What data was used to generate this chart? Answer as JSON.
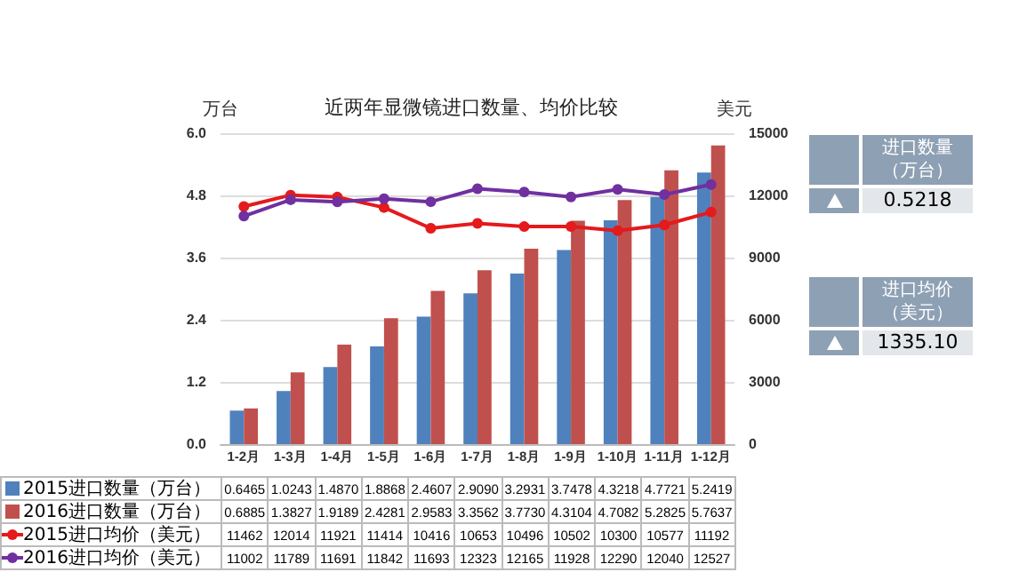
{
  "chart_data": [
    {
      "type": "bar",
      "title": "近两年显微镜进口数量、均价比较",
      "ylabel": "万台",
      "y2label": "美元",
      "categories": [
        "1-2月",
        "1-3月",
        "1-4月",
        "1-5月",
        "1-6月",
        "1-7月",
        "1-8月",
        "1-9月",
        "1-10月",
        "1-11月",
        "1-12月"
      ],
      "series": [
        {
          "name": "2015进口数量（万台）",
          "type": "bar",
          "color": "#4f81bd",
          "values": [
            0.6465,
            1.0243,
            1.487,
            1.8868,
            2.4607,
            2.909,
            3.2931,
            3.7478,
            4.3218,
            4.7721,
            5.2419
          ],
          "value_labels": [
            "0.6465",
            "1.0243",
            "1.4870",
            "1.8868",
            "2.4607",
            "2.9090",
            "3.2931",
            "3.7478",
            "4.3218",
            "4.7721",
            "5.2419"
          ]
        },
        {
          "name": "2016进口数量（万台）",
          "type": "bar",
          "color": "#c0504d",
          "values": [
            0.6885,
            1.3827,
            1.9189,
            2.4281,
            2.9583,
            3.3562,
            3.773,
            4.3104,
            4.7082,
            5.2825,
            5.7637
          ],
          "value_labels": [
            "0.6885",
            "1.3827",
            "1.9189",
            "2.4281",
            "2.9583",
            "3.3562",
            "3.7730",
            "4.3104",
            "4.7082",
            "5.2825",
            "5.7637"
          ]
        },
        {
          "name": "2015进口均价（美元）",
          "type": "line",
          "axis": "y2",
          "color": "#e41a1c",
          "values": [
            11462,
            12014,
            11921,
            11414,
            10416,
            10653,
            10496,
            10502,
            10300,
            10577,
            11192
          ],
          "value_labels": [
            "11462",
            "12014",
            "11921",
            "11414",
            "10416",
            "10653",
            "10496",
            "10502",
            "10300",
            "10577",
            "11192"
          ]
        },
        {
          "name": "2016进口均价（美元）",
          "type": "line",
          "axis": "y2",
          "color": "#7030a0",
          "values": [
            11002,
            11789,
            11691,
            11842,
            11693,
            12323,
            12165,
            11928,
            12290,
            12040,
            12527
          ],
          "value_labels": [
            "11002",
            "11789",
            "11691",
            "11842",
            "11693",
            "12323",
            "12165",
            "11928",
            "12290",
            "12040",
            "12527"
          ]
        }
      ],
      "ylim": [
        0,
        6
      ],
      "yticks": [
        {
          "value": 0,
          "label": "0.0"
        },
        {
          "value": 1.2,
          "label": "1.2"
        },
        {
          "value": 2.4,
          "label": "2.4"
        },
        {
          "value": 3.6,
          "label": "3.6"
        },
        {
          "value": 4.8,
          "label": "4.8"
        },
        {
          "value": 6,
          "label": "6.0"
        }
      ],
      "y2lim": [
        0,
        15000
      ],
      "y2ticks": [
        0,
        3000,
        6000,
        9000,
        12000,
        15000
      ],
      "grid": "y",
      "marker": "circle",
      "legend": "bottom"
    },
    {
      "type": "other",
      "annotations": [
        "进口数量（万台）",
        "0.5218",
        "进口均价（美元）",
        "1335.10"
      ]
    }
  ]
}
